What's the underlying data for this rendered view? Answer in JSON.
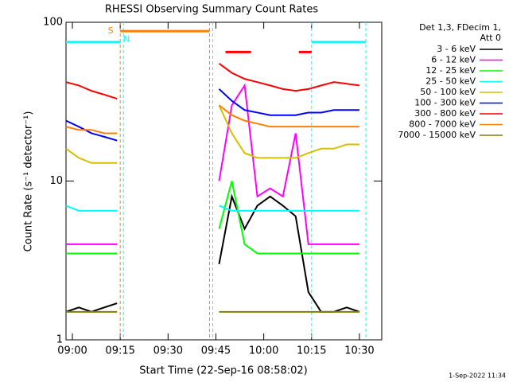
{
  "chart_data": {
    "type": "line",
    "title": "RHESSI Observing Summary Count Rates",
    "xlabel": "Start Time (22-Sep-16 08:58:02)",
    "ylabel": "Count Rate (s⁻¹ detector⁻¹)",
    "legend_title": [
      "Det 1,3, FDecim 1,",
      "Att 0"
    ],
    "timestamp": "1-Sep-2022 11:34",
    "log_y": true,
    "xlim": [
      "08:58",
      "10:37"
    ],
    "xticks": [
      "09:00",
      "09:15",
      "09:30",
      "09:45",
      "10:00",
      "10:15",
      "10:30"
    ],
    "ylim": [
      1,
      100
    ],
    "yticks": [
      1,
      10,
      100
    ],
    "x": [
      "08:58",
      "09:02",
      "09:06",
      "09:10",
      "09:14",
      "09:18",
      "09:22",
      "09:26",
      "09:30",
      "09:34",
      "09:38",
      "09:42",
      "09:46",
      "09:50",
      "09:54",
      "09:58",
      "10:02",
      "10:06",
      "10:10",
      "10:14",
      "10:18",
      "10:22",
      "10:26",
      "10:30"
    ],
    "series": [
      {
        "name": "3 - 6 keV",
        "color": "#000000",
        "values": [
          1.5,
          1.6,
          1.5,
          1.6,
          1.7,
          null,
          null,
          null,
          null,
          null,
          null,
          null,
          3,
          8,
          5,
          7,
          8,
          7,
          6,
          2,
          1.5,
          1.5,
          1.6,
          1.5
        ]
      },
      {
        "name": "6 - 12 keV",
        "color": "#ff00ff",
        "values": [
          4,
          4,
          4,
          4,
          4,
          null,
          null,
          null,
          null,
          null,
          null,
          null,
          10,
          30,
          40,
          8,
          9,
          8,
          20,
          4,
          4,
          4,
          4,
          4
        ]
      },
      {
        "name": "12 - 25 keV",
        "color": "#00ff00",
        "values": [
          3.5,
          3.5,
          3.5,
          3.5,
          3.5,
          null,
          null,
          null,
          null,
          null,
          null,
          null,
          5,
          10,
          4,
          3.5,
          3.5,
          3.5,
          3.5,
          3.5,
          3.5,
          3.5,
          3.5,
          3.5
        ]
      },
      {
        "name": "25 - 50 keV",
        "color": "#00ffff",
        "values": [
          7,
          6.5,
          6.5,
          6.5,
          6.5,
          null,
          null,
          null,
          null,
          null,
          null,
          null,
          7,
          6.5,
          6.5,
          6.5,
          6.5,
          6.5,
          6.5,
          6.5,
          6.5,
          6.5,
          6.5,
          6.5
        ]
      },
      {
        "name": "50 - 100 keV",
        "color": "#d4c000",
        "values": [
          16,
          14,
          13,
          13,
          13,
          null,
          null,
          null,
          null,
          null,
          null,
          null,
          30,
          20,
          15,
          14,
          14,
          14,
          14,
          15,
          16,
          16,
          17,
          17
        ]
      },
      {
        "name": "100 - 300 keV",
        "color": "#0000ff",
        "values": [
          24,
          22,
          20,
          19,
          18,
          null,
          null,
          null,
          null,
          null,
          null,
          null,
          38,
          32,
          28,
          27,
          26,
          26,
          26,
          27,
          27,
          28,
          28,
          28
        ]
      },
      {
        "name": "300 - 800 keV",
        "color": "#ff0000",
        "values": [
          42,
          40,
          37,
          35,
          33,
          null,
          null,
          null,
          null,
          null,
          null,
          null,
          55,
          48,
          44,
          42,
          40,
          38,
          37,
          38,
          40,
          42,
          41,
          40
        ]
      },
      {
        "name": "800 - 7000 keV",
        "color": "#ff8000",
        "values": [
          22,
          21,
          21,
          20,
          20,
          null,
          null,
          null,
          null,
          null,
          null,
          null,
          30,
          26,
          24,
          23,
          22,
          22,
          22,
          22,
          22,
          22,
          22,
          22
        ]
      },
      {
        "name": "7000 - 15000 keV",
        "color": "#808000",
        "values": [
          1.5,
          1.5,
          1.5,
          1.5,
          1.5,
          null,
          null,
          null,
          null,
          null,
          null,
          null,
          1.5,
          1.5,
          1.5,
          1.5,
          1.5,
          1.5,
          1.5,
          1.5,
          1.5,
          1.5,
          1.5,
          1.5
        ]
      }
    ],
    "flag_bars": [
      {
        "color": "#00ffff",
        "x": [
          "08:58",
          "09:15"
        ],
        "level": 75
      },
      {
        "color": "#ff8000",
        "x": [
          "09:15",
          "09:43"
        ],
        "level": 88
      },
      {
        "color": "#ff0000",
        "x": [
          "09:48",
          "09:56"
        ],
        "level": 65
      },
      {
        "color": "#ff0000",
        "x": [
          "10:11",
          "10:15"
        ],
        "level": 65
      },
      {
        "color": "#00ffff",
        "x": [
          "10:15",
          "10:32"
        ],
        "level": 75
      }
    ],
    "vlines": [
      {
        "x": "09:15",
        "color": "#ff8000"
      },
      {
        "x": "09:16",
        "color": "#00ffff"
      },
      {
        "x": "09:43",
        "color": "#ff8000"
      },
      {
        "x": "09:44",
        "color": "#00ffff"
      },
      {
        "x": "10:15",
        "color": "#00ffff"
      },
      {
        "x": "10:32",
        "color": "#00ffff"
      }
    ],
    "annotations": [
      {
        "text": "S",
        "x": "09:12",
        "y": 88,
        "color": "#ff8000"
      },
      {
        "text": "N",
        "x": "09:17",
        "y": 78,
        "color": "#00ffff"
      }
    ]
  }
}
